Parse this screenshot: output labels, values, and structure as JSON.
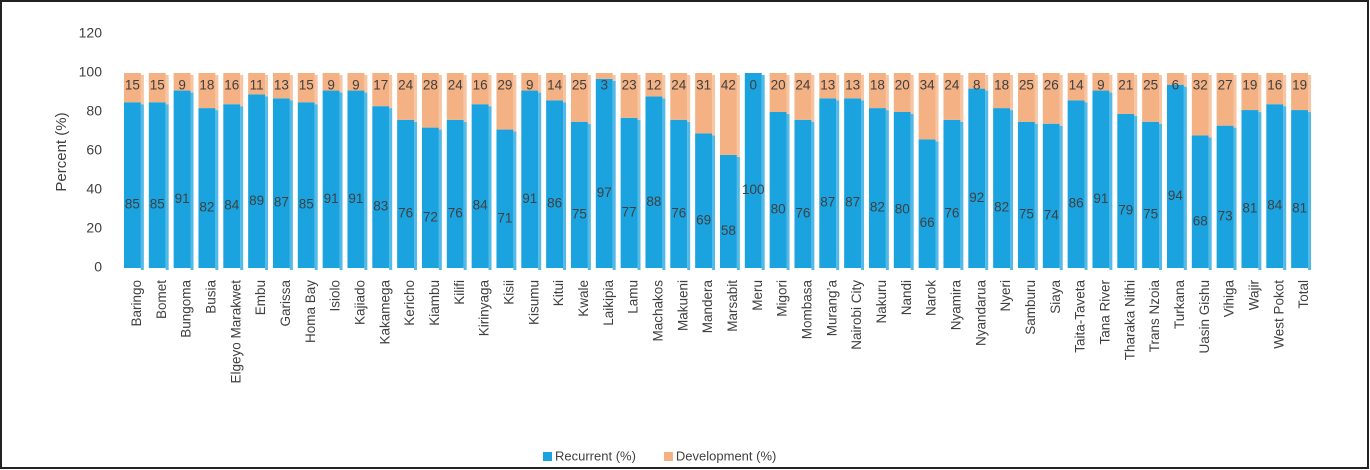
{
  "chart_data": {
    "type": "stacked_bar",
    "ylabel": "Percent (%)",
    "categories": [
      "Baringo",
      "Bomet",
      "Bungoma",
      "Busia",
      "Elgeyo Marakwet",
      "Embu",
      "Garissa",
      "Homa Bay",
      "Isiolo",
      "Kajiado",
      "Kakamega",
      "Kericho",
      "Kiambu",
      "Kilifi",
      "Kirinyaga",
      "Kisii",
      "Kisumu",
      "Kitui",
      "Kwale",
      "Laikipia",
      "Lamu",
      "Machakos",
      "Makueni",
      "Mandera",
      "Marsabit",
      "Meru",
      "Migori",
      "Mombasa",
      "Murang’a",
      "Nairobi City",
      "Nakuru",
      "Nandi",
      "Narok",
      "Nyamira",
      "Nyandarua",
      "Nyeri",
      "Samburu",
      "Siaya",
      "Taita-Taveta",
      "Tana River",
      "Tharaka Nithi",
      "Trans Nzoia",
      "Turkana",
      "Uasin Gishu",
      "Vihiga",
      "Wajir",
      "West Pokot",
      "Total"
    ],
    "series": [
      {
        "name": "Recurrent (%)",
        "color": "#1aa3df",
        "values": [
          85,
          85,
          91,
          82,
          84,
          89,
          87,
          85,
          91,
          91,
          83,
          76,
          72,
          76,
          84,
          71,
          91,
          86,
          75,
          97,
          77,
          88,
          76,
          69,
          58,
          100,
          80,
          76,
          87,
          87,
          82,
          80,
          66,
          76,
          92,
          82,
          75,
          74,
          86,
          91,
          79,
          75,
          94,
          68,
          73,
          81,
          84,
          81
        ]
      },
      {
        "name": "Development (%)",
        "color": "#f4b183",
        "values": [
          15,
          15,
          9,
          18,
          16,
          11,
          13,
          15,
          9,
          9,
          17,
          24,
          28,
          24,
          16,
          29,
          9,
          14,
          25,
          3,
          23,
          12,
          24,
          31,
          42,
          0,
          20,
          24,
          13,
          13,
          18,
          20,
          34,
          24,
          8,
          18,
          25,
          26,
          14,
          9,
          21,
          25,
          6,
          32,
          27,
          19,
          16,
          19
        ]
      }
    ],
    "ylim": [
      0,
      120
    ],
    "yticks": [
      0,
      20,
      40,
      60,
      80,
      100,
      120
    ],
    "grid": false,
    "legend": "bottom"
  }
}
